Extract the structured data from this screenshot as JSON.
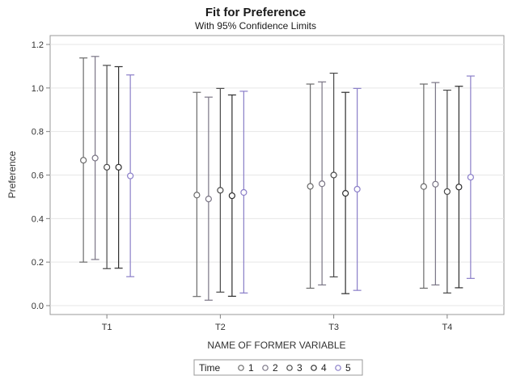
{
  "chart_data": {
    "type": "scatter",
    "subtype": "error-bar",
    "title": "Fit for Preference",
    "subtitle": "With 95% Confidence Limits",
    "xlabel": "NAME OF FORMER VARIABLE",
    "ylabel": "Preference",
    "categories": [
      "T1",
      "T2",
      "T3",
      "T4"
    ],
    "ylim": [
      0,
      1.2
    ],
    "yticks": [
      "0.0",
      "0.2",
      "0.4",
      "0.6",
      "0.8",
      "1.0",
      "1.2"
    ],
    "grid": true,
    "legend": {
      "title": "Time",
      "placement": "bottom"
    },
    "series": [
      {
        "name": "1",
        "color": "#6b6b6b",
        "values": [
          0.668,
          0.508,
          0.548,
          0.547
        ],
        "lower": [
          0.2,
          0.042,
          0.08,
          0.08
        ],
        "upper": [
          1.138,
          0.98,
          1.018,
          1.018
        ]
      },
      {
        "name": "2",
        "color": "#7a7585",
        "values": [
          0.678,
          0.49,
          0.56,
          0.558
        ],
        "lower": [
          0.212,
          0.025,
          0.095,
          0.095
        ],
        "upper": [
          1.145,
          0.958,
          1.028,
          1.025
        ]
      },
      {
        "name": "3",
        "color": "#4a4a4a",
        "values": [
          0.636,
          0.53,
          0.6,
          0.524
        ],
        "lower": [
          0.17,
          0.062,
          0.132,
          0.058
        ],
        "upper": [
          1.104,
          0.998,
          1.068,
          0.99
        ]
      },
      {
        "name": "4",
        "color": "#2e2e2e",
        "values": [
          0.636,
          0.505,
          0.516,
          0.545
        ],
        "lower": [
          0.172,
          0.043,
          0.055,
          0.082
        ],
        "upper": [
          1.098,
          0.968,
          0.98,
          1.008
        ]
      },
      {
        "name": "5",
        "color": "#8a7ec8",
        "values": [
          0.596,
          0.52,
          0.535,
          0.59
        ],
        "lower": [
          0.133,
          0.058,
          0.07,
          0.125
        ],
        "upper": [
          1.06,
          0.985,
          0.998,
          1.055
        ]
      }
    ]
  }
}
